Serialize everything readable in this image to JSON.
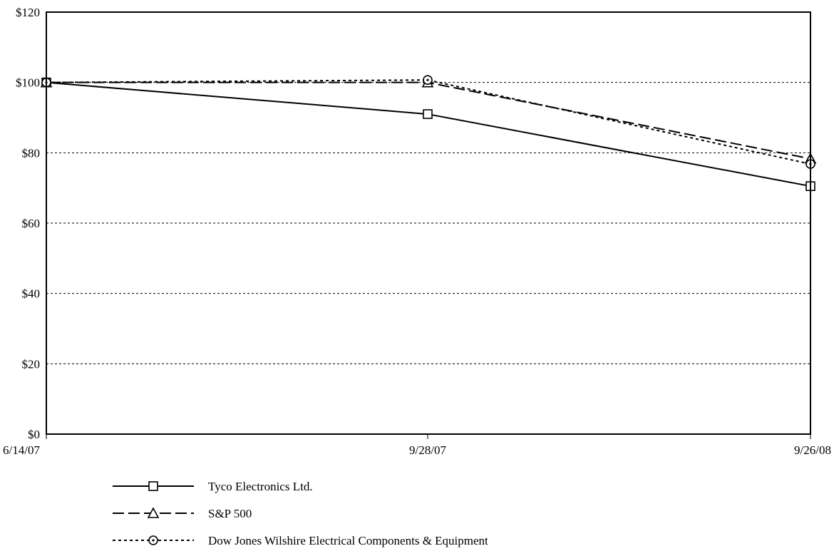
{
  "chart_data": {
    "type": "line",
    "categories": [
      "6/14/07",
      "9/28/07",
      "9/26/08"
    ],
    "series": [
      {
        "name": "Tyco Electronics Ltd.",
        "values": [
          100,
          91,
          70.5
        ],
        "marker": "square",
        "dash": "solid"
      },
      {
        "name": "S&P 500",
        "values": [
          100,
          100,
          78.3
        ],
        "marker": "triangle",
        "dash": "dashed"
      },
      {
        "name": "Dow Jones Wilshire Electrical Components & Equipment",
        "values": [
          100,
          100.7,
          76.8
        ],
        "marker": "circle",
        "dash": "dotted"
      }
    ],
    "ylim": [
      0,
      120
    ],
    "yticks": [
      "$0",
      "$20",
      "$40",
      "$60",
      "$80",
      "$100",
      "$120"
    ],
    "ytick_values": [
      0,
      20,
      40,
      60,
      80,
      100,
      120
    ],
    "grid": "horizontal-dashed",
    "legend_position": "bottom-left",
    "colors": {
      "line": "#000000",
      "grid": "#000000",
      "background": "#ffffff"
    }
  }
}
